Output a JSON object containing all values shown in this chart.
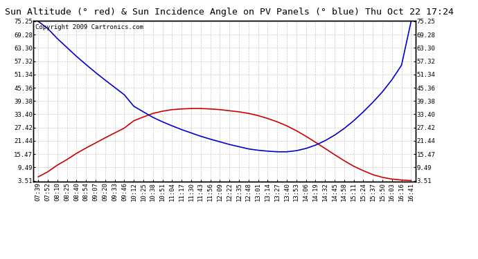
{
  "title": "Sun Altitude (° red) & Sun Incidence Angle on PV Panels (° blue) Thu Oct 22 17:24",
  "copyright": "Copyright 2009 Cartronics.com",
  "yticks": [
    3.51,
    9.49,
    15.47,
    21.44,
    27.42,
    33.4,
    39.38,
    45.36,
    51.34,
    57.32,
    63.3,
    69.28,
    75.25
  ],
  "ymin": 3.51,
  "ymax": 75.25,
  "x_labels": [
    "07:39",
    "07:52",
    "08:10",
    "08:25",
    "08:40",
    "08:54",
    "09:07",
    "09:20",
    "09:33",
    "09:46",
    "10:12",
    "10:25",
    "10:38",
    "10:51",
    "11:04",
    "11:17",
    "11:30",
    "11:43",
    "11:56",
    "12:09",
    "12:22",
    "12:35",
    "12:48",
    "13:01",
    "13:14",
    "13:27",
    "13:40",
    "13:53",
    "14:06",
    "14:19",
    "14:32",
    "14:45",
    "14:58",
    "15:11",
    "15:24",
    "15:37",
    "15:50",
    "16:03",
    "16:16",
    "16:41"
  ],
  "background_color": "#ffffff",
  "plot_bg_color": "#ffffff",
  "grid_color": "#bbbbbb",
  "red_color": "#cc0000",
  "blue_color": "#0000cc",
  "title_fontsize": 9.5,
  "tick_fontsize": 6.5,
  "copyright_fontsize": 6.5,
  "red_data": [
    5.2,
    7.5,
    10.5,
    13.0,
    15.8,
    18.2,
    20.5,
    22.8,
    25.0,
    27.2,
    30.5,
    32.2,
    33.8,
    34.8,
    35.5,
    35.8,
    36.0,
    36.0,
    35.8,
    35.5,
    35.0,
    34.5,
    33.8,
    32.8,
    31.5,
    30.0,
    28.2,
    26.0,
    23.5,
    20.8,
    18.0,
    15.2,
    12.5,
    10.0,
    8.0,
    6.2,
    5.0,
    4.2,
    3.8,
    3.51
  ],
  "blue_data": [
    75.25,
    72.0,
    67.5,
    63.5,
    59.5,
    55.8,
    52.2,
    48.8,
    45.5,
    42.2,
    37.0,
    34.5,
    32.0,
    30.0,
    28.2,
    26.5,
    25.0,
    23.5,
    22.2,
    21.0,
    19.8,
    18.8,
    17.8,
    17.2,
    16.8,
    16.5,
    16.5,
    17.0,
    18.0,
    19.5,
    21.5,
    24.0,
    27.0,
    30.5,
    34.5,
    38.8,
    43.5,
    49.0,
    55.5,
    75.25
  ]
}
